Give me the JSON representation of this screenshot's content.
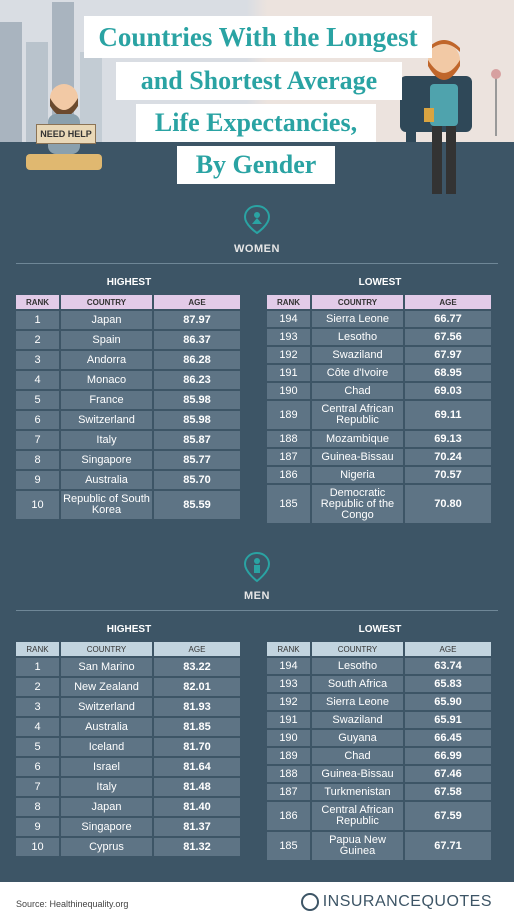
{
  "title": {
    "line1": "Countries With the Longest",
    "line2": "and Shortest Average",
    "line3": "Life Expectancies,",
    "line4": "By Gender"
  },
  "sign_text": "NEED HELP",
  "women": {
    "label": "WOMEN",
    "highest_title": "HIGHEST",
    "lowest_title": "LOWEST",
    "headers": {
      "rank": "RANK",
      "country": "COUNTRY",
      "age": "AGE"
    },
    "highest": [
      {
        "rank": "1",
        "country": "Japan",
        "age": "87.97"
      },
      {
        "rank": "2",
        "country": "Spain",
        "age": "86.37"
      },
      {
        "rank": "3",
        "country": "Andorra",
        "age": "86.28"
      },
      {
        "rank": "4",
        "country": "Monaco",
        "age": "86.23"
      },
      {
        "rank": "5",
        "country": "France",
        "age": "85.98"
      },
      {
        "rank": "6",
        "country": "Switzerland",
        "age": "85.98"
      },
      {
        "rank": "7",
        "country": "Italy",
        "age": "85.87"
      },
      {
        "rank": "8",
        "country": "Singapore",
        "age": "85.77"
      },
      {
        "rank": "9",
        "country": "Australia",
        "age": "85.70"
      },
      {
        "rank": "10",
        "country": "Republic of South Korea",
        "age": "85.59"
      }
    ],
    "lowest": [
      {
        "rank": "194",
        "country": "Sierra Leone",
        "age": "66.77"
      },
      {
        "rank": "193",
        "country": "Lesotho",
        "age": "67.56"
      },
      {
        "rank": "192",
        "country": "Swaziland",
        "age": "67.97"
      },
      {
        "rank": "191",
        "country": "Côte d'Ivoire",
        "age": "68.95"
      },
      {
        "rank": "190",
        "country": "Chad",
        "age": "69.03"
      },
      {
        "rank": "189",
        "country": "Central African Republic",
        "age": "69.11"
      },
      {
        "rank": "188",
        "country": "Mozambique",
        "age": "69.13"
      },
      {
        "rank": "187",
        "country": "Guinea-Bissau",
        "age": "70.24"
      },
      {
        "rank": "186",
        "country": "Nigeria",
        "age": "70.57"
      },
      {
        "rank": "185",
        "country": "Democratic Republic of the Congo",
        "age": "70.80"
      }
    ]
  },
  "men": {
    "label": "MEN",
    "highest_title": "HIGHEST",
    "lowest_title": "LOWEST",
    "headers": {
      "rank": "RANK",
      "country": "COUNTRY",
      "age": "AGE"
    },
    "highest": [
      {
        "rank": "1",
        "country": "San Marino",
        "age": "83.22"
      },
      {
        "rank": "2",
        "country": "New Zealand",
        "age": "82.01"
      },
      {
        "rank": "3",
        "country": "Switzerland",
        "age": "81.93"
      },
      {
        "rank": "4",
        "country": "Australia",
        "age": "81.85"
      },
      {
        "rank": "5",
        "country": "Iceland",
        "age": "81.70"
      },
      {
        "rank": "6",
        "country": "Israel",
        "age": "81.64"
      },
      {
        "rank": "7",
        "country": "Italy",
        "age": "81.48"
      },
      {
        "rank": "8",
        "country": "Japan",
        "age": "81.40"
      },
      {
        "rank": "9",
        "country": "Singapore",
        "age": "81.37"
      },
      {
        "rank": "10",
        "country": "Cyprus",
        "age": "81.32"
      }
    ],
    "lowest": [
      {
        "rank": "194",
        "country": "Lesotho",
        "age": "63.74"
      },
      {
        "rank": "193",
        "country": "South Africa",
        "age": "65.83"
      },
      {
        "rank": "192",
        "country": "Sierra Leone",
        "age": "65.90"
      },
      {
        "rank": "191",
        "country": "Swaziland",
        "age": "65.91"
      },
      {
        "rank": "190",
        "country": "Guyana",
        "age": "66.45"
      },
      {
        "rank": "189",
        "country": "Chad",
        "age": "66.99"
      },
      {
        "rank": "188",
        "country": "Guinea-Bissau",
        "age": "67.46"
      },
      {
        "rank": "187",
        "country": "Turkmenistan",
        "age": "67.58"
      },
      {
        "rank": "186",
        "country": "Central African Republic",
        "age": "67.59"
      },
      {
        "rank": "185",
        "country": "Papua New Guinea",
        "age": "67.71"
      }
    ]
  },
  "footer": {
    "source": "Source: Healthinequality.org",
    "logo": "INSURANCEQUOTES"
  },
  "colors": {
    "background": "#3d5566",
    "title_text": "#2aa3a3",
    "women_header": "#e2cbe8",
    "men_header": "#c2d4df",
    "cell": "#5e7485",
    "icon": "#2aa3a3"
  },
  "icons": {
    "women": "female-pin-icon",
    "men": "male-pin-icon"
  }
}
